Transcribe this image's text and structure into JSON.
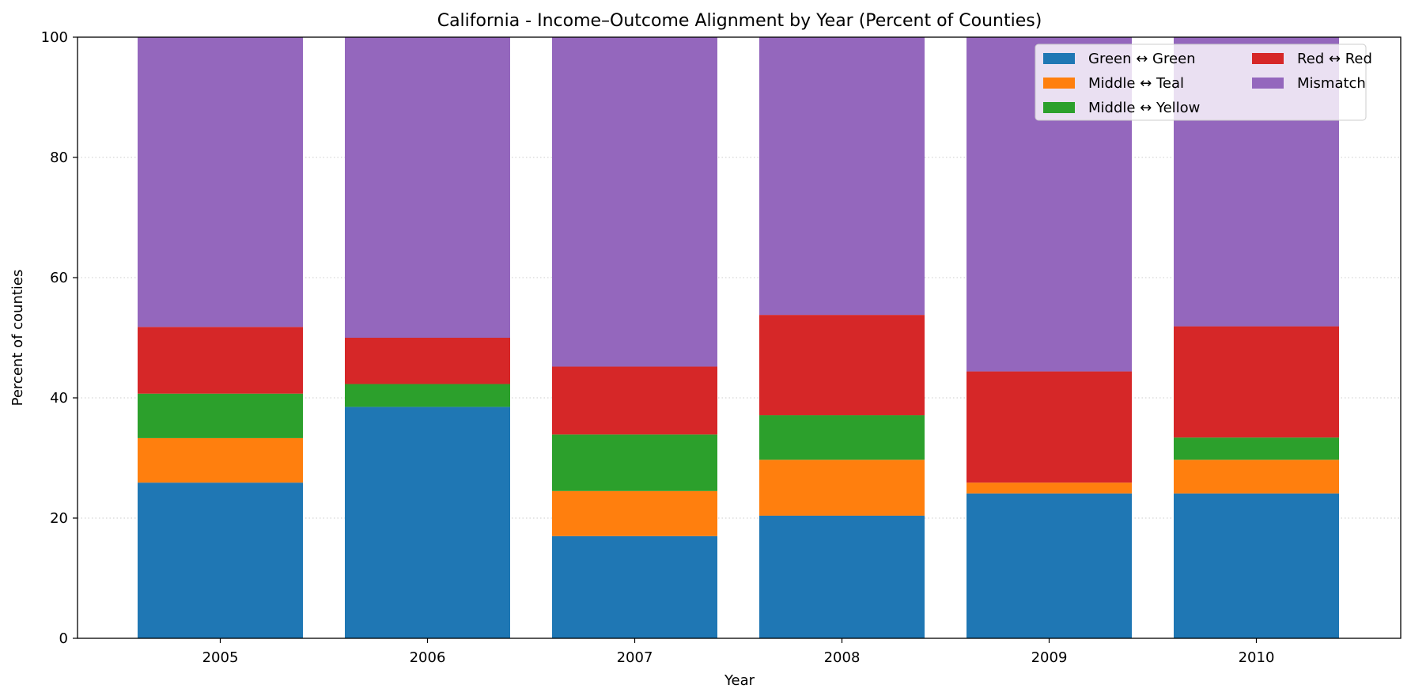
{
  "chart_data": {
    "type": "bar",
    "stacked": true,
    "title": "California - Income–Outcome Alignment by Year (Percent of Counties)",
    "xlabel": "Year",
    "ylabel": "Percent of counties",
    "ylim": [
      0,
      100
    ],
    "yticks": [
      0,
      20,
      40,
      60,
      80,
      100
    ],
    "grid": "y-dotted",
    "legend_position": "top-right",
    "categories": [
      "2005",
      "2006",
      "2007",
      "2008",
      "2009",
      "2010"
    ],
    "series": [
      {
        "name": "Green ↔ Green",
        "color": "#1f77b4",
        "values": [
          25.9,
          38.5,
          17.0,
          20.4,
          24.1,
          24.1
        ]
      },
      {
        "name": "Middle ↔ Teal",
        "color": "#ff7f0e",
        "values": [
          7.4,
          0.0,
          7.5,
          9.3,
          1.8,
          5.6
        ]
      },
      {
        "name": "Middle ↔ Yellow",
        "color": "#2ca02c",
        "values": [
          7.4,
          3.8,
          9.4,
          7.4,
          0.0,
          3.7
        ]
      },
      {
        "name": "Red ↔ Red",
        "color": "#d62728",
        "values": [
          11.1,
          7.7,
          11.3,
          16.7,
          18.5,
          18.5
        ]
      },
      {
        "name": "Mismatch",
        "color": "#9467bd",
        "values": [
          48.2,
          50.0,
          54.8,
          46.2,
          55.6,
          48.1
        ]
      }
    ]
  }
}
